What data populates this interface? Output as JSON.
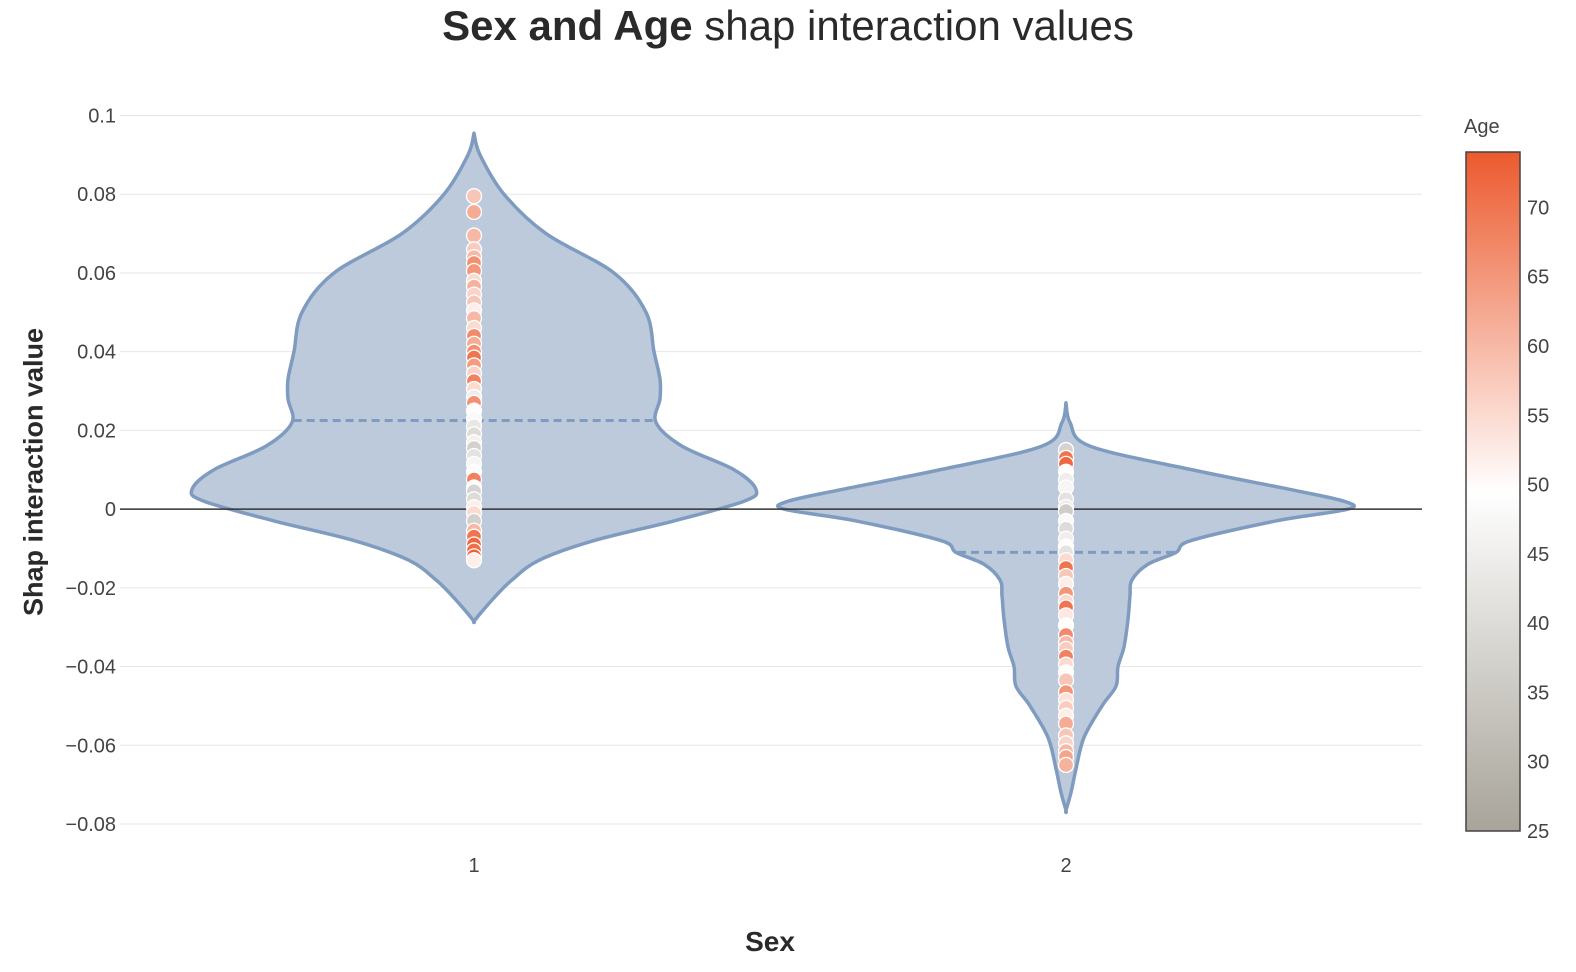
{
  "title": {
    "bold": "Sex and Age",
    "rest": " shap interaction values"
  },
  "colors": {
    "violin_fill": "#bccadc",
    "violin_line": "#7f9cc0",
    "zero_line": "#333333",
    "grid": "#e6e6e6",
    "scale_low": "#a8a49a",
    "scale_mid": "#ffffff",
    "scale_high": "#ec5a2e"
  },
  "chart_data": {
    "type": "violin",
    "title": "Sex and Age shap interaction values",
    "xlabel": "Sex",
    "ylabel": "Shap interaction value",
    "categories": [
      "1",
      "2"
    ],
    "ylim": [
      -0.09,
      0.105
    ],
    "yticks": [
      0.1,
      0.08,
      0.06,
      0.04,
      0.02,
      0,
      -0.02,
      -0.04,
      -0.06,
      -0.08
    ],
    "ytick_labels": [
      "0.1",
      "0.08",
      "0.06",
      "0.04",
      "0.02",
      "0",
      "−0.02",
      "−0.04",
      "−0.06",
      "−0.08"
    ],
    "grid": true,
    "zero_line": true,
    "colorbar": {
      "title": "Age",
      "range": [
        25,
        74
      ],
      "ticks": [
        25,
        30,
        35,
        40,
        45,
        50,
        55,
        60,
        65,
        70
      ]
    },
    "series": [
      {
        "category": "1",
        "mean": 0.0225,
        "y_range": [
          -0.0285,
          0.0955
        ],
        "points": [
          {
            "y": 0.0795,
            "age": 58
          },
          {
            "y": 0.0755,
            "age": 62
          },
          {
            "y": 0.0695,
            "age": 60
          },
          {
            "y": 0.066,
            "age": 57
          },
          {
            "y": 0.064,
            "age": 60
          },
          {
            "y": 0.0625,
            "age": 66
          },
          {
            "y": 0.0605,
            "age": 65
          },
          {
            "y": 0.058,
            "age": 55
          },
          {
            "y": 0.0565,
            "age": 61
          },
          {
            "y": 0.0545,
            "age": 56
          },
          {
            "y": 0.0525,
            "age": 58
          },
          {
            "y": 0.0505,
            "age": 52
          },
          {
            "y": 0.0485,
            "age": 60
          },
          {
            "y": 0.046,
            "age": 55
          },
          {
            "y": 0.044,
            "age": 67
          },
          {
            "y": 0.042,
            "age": 62
          },
          {
            "y": 0.04,
            "age": 66
          },
          {
            "y": 0.0385,
            "age": 70
          },
          {
            "y": 0.0365,
            "age": 64
          },
          {
            "y": 0.0345,
            "age": 56
          },
          {
            "y": 0.0325,
            "age": 68
          },
          {
            "y": 0.0305,
            "age": 55
          },
          {
            "y": 0.0285,
            "age": 45
          },
          {
            "y": 0.027,
            "age": 66
          },
          {
            "y": 0.025,
            "age": 50
          },
          {
            "y": 0.023,
            "age": 48
          },
          {
            "y": 0.021,
            "age": 43
          },
          {
            "y": 0.019,
            "age": 40
          },
          {
            "y": 0.017,
            "age": 46
          },
          {
            "y": 0.0155,
            "age": 37
          },
          {
            "y": 0.0135,
            "age": 42
          },
          {
            "y": 0.0115,
            "age": 47
          },
          {
            "y": 0.0095,
            "age": 49
          },
          {
            "y": 0.0075,
            "age": 68
          },
          {
            "y": 0.0055,
            "age": 50
          },
          {
            "y": 0.0045,
            "age": 38
          },
          {
            "y": 0.0025,
            "age": 40
          },
          {
            "y": 0.0005,
            "age": 52
          },
          {
            "y": -0.001,
            "age": 55
          },
          {
            "y": -0.003,
            "age": 37
          },
          {
            "y": -0.0055,
            "age": 60
          },
          {
            "y": -0.007,
            "age": 70
          },
          {
            "y": -0.009,
            "age": 72
          },
          {
            "y": -0.0105,
            "age": 71
          },
          {
            "y": -0.012,
            "age": 73
          },
          {
            "y": -0.013,
            "age": 52
          }
        ]
      },
      {
        "category": "2",
        "mean": -0.011,
        "y_range": [
          -0.0765,
          0.027
        ],
        "points": [
          {
            "y": 0.015,
            "age": 38
          },
          {
            "y": 0.013,
            "age": 70
          },
          {
            "y": 0.0115,
            "age": 72
          },
          {
            "y": 0.0095,
            "age": 50
          },
          {
            "y": 0.0075,
            "age": 45
          },
          {
            "y": 0.0055,
            "age": 47
          },
          {
            "y": 0.0025,
            "age": 42
          },
          {
            "y": 0.0005,
            "age": 44
          },
          {
            "y": -0.0005,
            "age": 36
          },
          {
            "y": -0.003,
            "age": 48
          },
          {
            "y": -0.005,
            "age": 40
          },
          {
            "y": -0.0075,
            "age": 45
          },
          {
            "y": -0.0095,
            "age": 50
          },
          {
            "y": -0.011,
            "age": 42
          },
          {
            "y": -0.013,
            "age": 55
          },
          {
            "y": -0.015,
            "age": 70
          },
          {
            "y": -0.017,
            "age": 58
          },
          {
            "y": -0.019,
            "age": 52
          },
          {
            "y": -0.0215,
            "age": 65
          },
          {
            "y": -0.0235,
            "age": 55
          },
          {
            "y": -0.025,
            "age": 70
          },
          {
            "y": -0.027,
            "age": 53
          },
          {
            "y": -0.0295,
            "age": 50
          },
          {
            "y": -0.032,
            "age": 67
          },
          {
            "y": -0.034,
            "age": 60
          },
          {
            "y": -0.0355,
            "age": 57
          },
          {
            "y": -0.0375,
            "age": 68
          },
          {
            "y": -0.0395,
            "age": 55
          },
          {
            "y": -0.0415,
            "age": 50
          },
          {
            "y": -0.0435,
            "age": 58
          },
          {
            "y": -0.0465,
            "age": 65
          },
          {
            "y": -0.0485,
            "age": 54
          },
          {
            "y": -0.0505,
            "age": 57
          },
          {
            "y": -0.0525,
            "age": 52
          },
          {
            "y": -0.0545,
            "age": 62
          },
          {
            "y": -0.0575,
            "age": 58
          },
          {
            "y": -0.0595,
            "age": 56
          },
          {
            "y": -0.0615,
            "age": 60
          },
          {
            "y": -0.063,
            "age": 63
          },
          {
            "y": -0.065,
            "age": 61
          }
        ]
      }
    ]
  }
}
